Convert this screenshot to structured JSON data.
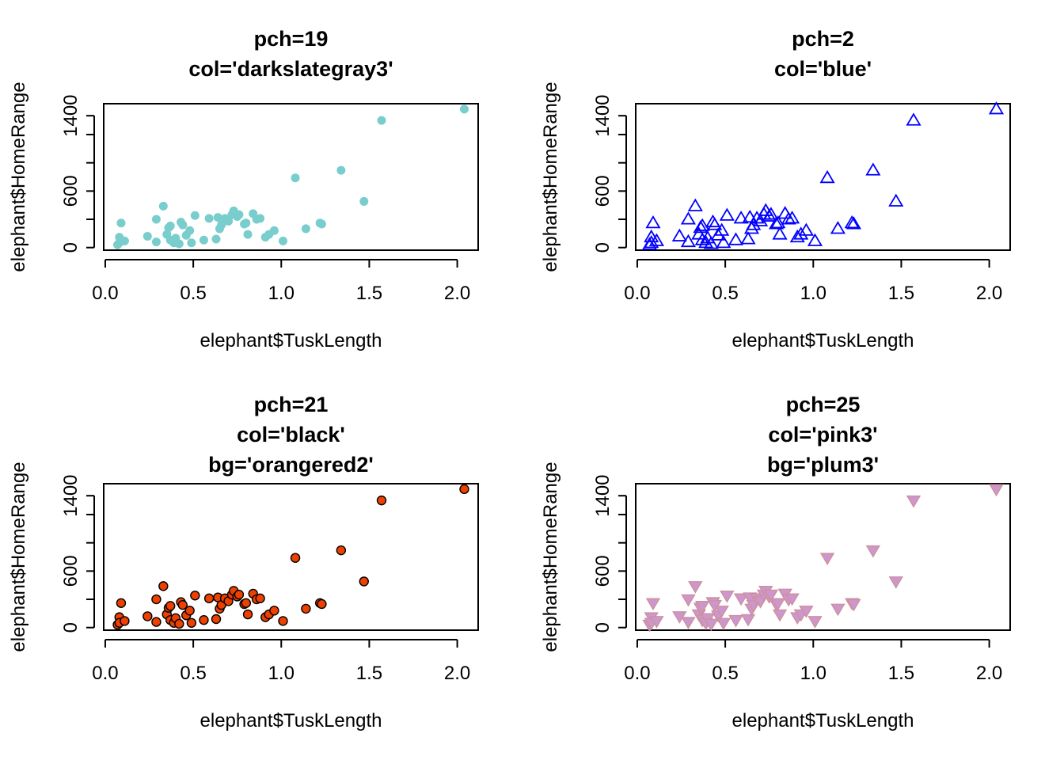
{
  "chart_data": [
    {
      "type": "scatter",
      "title_lines": [
        "pch=19",
        "col='darkslategray3'"
      ],
      "xlabel": "elephant$TuskLength",
      "ylabel": "elephant$HomeRange",
      "xlim": [
        0,
        2
      ],
      "ylim": [
        0,
        1500
      ],
      "xticks": [
        "0.0",
        "0.5",
        "1.0",
        "1.5",
        "2.0"
      ],
      "yticks": [
        "0",
        "600",
        "1400"
      ],
      "marker": "filled-circle",
      "color": "#79CDCD",
      "grid": false,
      "legend": "none"
    },
    {
      "type": "scatter",
      "title_lines": [
        "pch=2",
        "col='blue'"
      ],
      "xlabel": "elephant$TuskLength",
      "ylabel": "elephant$HomeRange",
      "xlim": [
        0,
        2
      ],
      "ylim": [
        0,
        1500
      ],
      "xticks": [
        "0.0",
        "0.5",
        "1.0",
        "1.5",
        "2.0"
      ],
      "yticks": [
        "0",
        "600",
        "1400"
      ],
      "marker": "open-triangle-up",
      "color": "#0000FF",
      "grid": false,
      "legend": "none"
    },
    {
      "type": "scatter",
      "title_lines": [
        "pch=21",
        "col='black'",
        "bg='orangered2'"
      ],
      "xlabel": "elephant$TuskLength",
      "ylabel": "elephant$HomeRange",
      "xlim": [
        0,
        2
      ],
      "ylim": [
        0,
        1500
      ],
      "xticks": [
        "0.0",
        "0.5",
        "1.0",
        "1.5",
        "2.0"
      ],
      "yticks": [
        "0",
        "600",
        "1400"
      ],
      "marker": "outlined-circle",
      "color": "#000000",
      "fill": "#EE4000",
      "grid": false,
      "legend": "none"
    },
    {
      "type": "scatter",
      "title_lines": [
        "pch=25",
        "col='pink3'",
        "bg='plum3'"
      ],
      "xlabel": "elephant$TuskLength",
      "ylabel": "elephant$HomeRange",
      "xlim": [
        0,
        2
      ],
      "ylim": [
        0,
        1500
      ],
      "xticks": [
        "0.0",
        "0.5",
        "1.0",
        "1.5",
        "2.0"
      ],
      "yticks": [
        "0",
        "600",
        "1400"
      ],
      "marker": "outlined-triangle-down",
      "color": "#CD919E",
      "fill": "#CD96CD",
      "grid": false,
      "legend": "none"
    }
  ],
  "points": {
    "x": [
      0.07,
      0.08,
      0.08,
      0.09,
      0.11,
      0.24,
      0.29,
      0.29,
      0.33,
      0.35,
      0.36,
      0.37,
      0.37,
      0.39,
      0.4,
      0.42,
      0.43,
      0.44,
      0.46,
      0.48,
      0.49,
      0.51,
      0.56,
      0.59,
      0.63,
      0.64,
      0.65,
      0.66,
      0.68,
      0.7,
      0.72,
      0.73,
      0.75,
      0.76,
      0.79,
      0.8,
      0.81,
      0.84,
      0.86,
      0.88,
      0.91,
      0.93,
      0.96,
      1.01,
      1.08,
      1.14,
      1.22,
      1.23,
      1.34,
      1.47,
      1.57,
      2.04
    ],
    "y": [
      30,
      110,
      50,
      260,
      70,
      120,
      60,
      300,
      440,
      140,
      210,
      80,
      230,
      50,
      100,
      40,
      270,
      240,
      130,
      180,
      50,
      340,
      80,
      310,
      90,
      320,
      200,
      240,
      310,
      280,
      350,
      390,
      330,
      350,
      250,
      260,
      140,
      360,
      300,
      310,
      110,
      140,
      180,
      70,
      740,
      200,
      260,
      250,
      820,
      490,
      1350,
      1470
    ]
  }
}
